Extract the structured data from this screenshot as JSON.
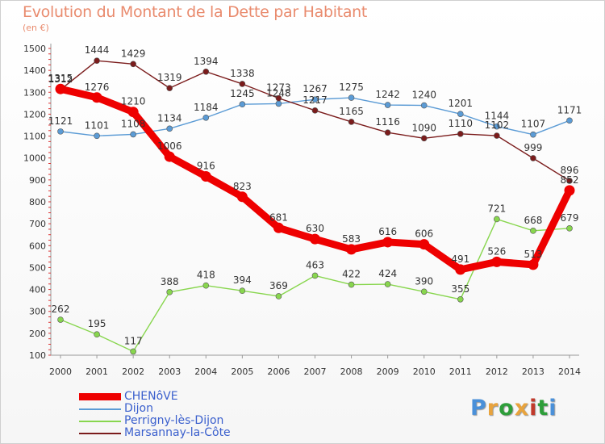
{
  "header": {
    "title": "Evolution du Montant de la Dette par Habitant",
    "subtitle": "(en €)"
  },
  "logo": {
    "text": "Proxiti",
    "colors": [
      "#4a90d9",
      "#e8a33d",
      "#2e9e3a",
      "#e8a33d",
      "#c0392b",
      "#2e9e3a",
      "#4a90d9"
    ]
  },
  "chart_data": {
    "type": "line",
    "x": [
      "2000",
      "2001",
      "2002",
      "2003",
      "2004",
      "2005",
      "2006",
      "2007",
      "2008",
      "2009",
      "2010",
      "2011",
      "2012",
      "2013",
      "2014"
    ],
    "ylim": [
      100,
      1500
    ],
    "yticks": [
      100,
      200,
      300,
      400,
      500,
      600,
      700,
      800,
      900,
      1000,
      1100,
      1200,
      1300,
      1400,
      1500
    ],
    "grid": false,
    "legend_position": "bottom-left",
    "series": [
      {
        "name": "CHENôVE",
        "color": "#ee0000",
        "values": [
          1315,
          1276,
          1210,
          1006,
          916,
          823,
          681,
          630,
          583,
          616,
          606,
          491,
          526,
          513,
          852
        ],
        "labels": [
          "1315",
          "1276",
          "1210",
          "1006",
          "916",
          "823",
          "681",
          "630",
          "583",
          "616",
          "606",
          "491",
          "526",
          "513",
          "852"
        ]
      },
      {
        "name": "Dijon",
        "color": "#5b9bd5",
        "values": [
          1121,
          1101,
          1108,
          1134,
          1184,
          1245,
          1248,
          1267,
          1275,
          1242,
          1240,
          1201,
          1144,
          1107,
          1171
        ],
        "labels": [
          "1121",
          "1101",
          "1108",
          "1134",
          "1184",
          "1245",
          "1248",
          "1267",
          "1275",
          "1242",
          "1240",
          "1201",
          "1144",
          "1107",
          "1171"
        ]
      },
      {
        "name": "Perrigny-lès-Dijon",
        "color": "#88d64e",
        "values": [
          262,
          195,
          117,
          388,
          418,
          394,
          369,
          463,
          422,
          424,
          390,
          355,
          721,
          668,
          679
        ],
        "labels": [
          "262",
          "195",
          "117",
          "388",
          "418",
          "394",
          "369",
          "463",
          "422",
          "424",
          "390",
          "355",
          "721",
          "668",
          "679"
        ]
      },
      {
        "name": "Marsannay-la-Côte",
        "color": "#7b1c1c",
        "values": [
          1312,
          1444,
          1429,
          1319,
          1394,
          1338,
          1273,
          1217,
          1165,
          1116,
          1090,
          1110,
          1102,
          999,
          896
        ],
        "labels": [
          "1312",
          "1444",
          "1429",
          "1319",
          "1394",
          "1338",
          "1273",
          "1217",
          "1165",
          "1116",
          "1090",
          "1110",
          "1102",
          "999",
          "896"
        ]
      }
    ]
  }
}
